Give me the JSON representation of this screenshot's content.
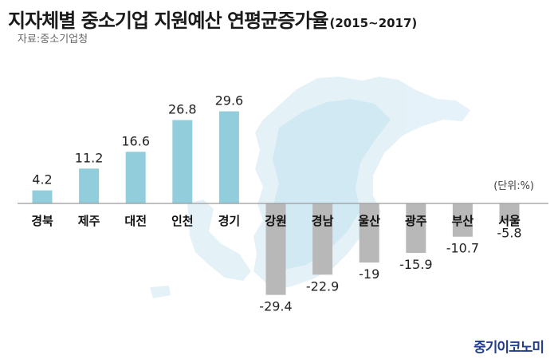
{
  "header": {
    "title": "지자체별 중소기업 지원예산 연평균증가율",
    "title_suffix": "(2015~2017)",
    "source": "자료:중소기업청"
  },
  "unit_label": "(단위:%)",
  "brand": "중기이코노미",
  "colors": {
    "positive": "#92CDDC",
    "negative": "#B8B8B8",
    "brand": "#1F3D8C",
    "map_light": "#E2F1F8",
    "map_mid": "#C4E2EF"
  },
  "chart_data": {
    "type": "bar",
    "title": "지자체별 중소기업 지원예산 연평균증가율",
    "subtitle": "(2015~2017)",
    "categories": [
      "경북",
      "제주",
      "대전",
      "인천",
      "경기",
      "강원",
      "경남",
      "울산",
      "광주",
      "부산",
      "서울"
    ],
    "values": [
      4.2,
      11.2,
      16.6,
      26.8,
      29.6,
      -29.4,
      -22.9,
      -19,
      -15.9,
      -10.7,
      -5.8
    ],
    "value_labels": [
      "4.2",
      "11.2",
      "16.6",
      "26.8",
      "29.6",
      "-29.4",
      "-22.9",
      "-19",
      "-15.9",
      "-10.7",
      "-5.8"
    ],
    "unit": "%",
    "ylim": [
      -30,
      30
    ],
    "grid": false,
    "baseline": true
  }
}
